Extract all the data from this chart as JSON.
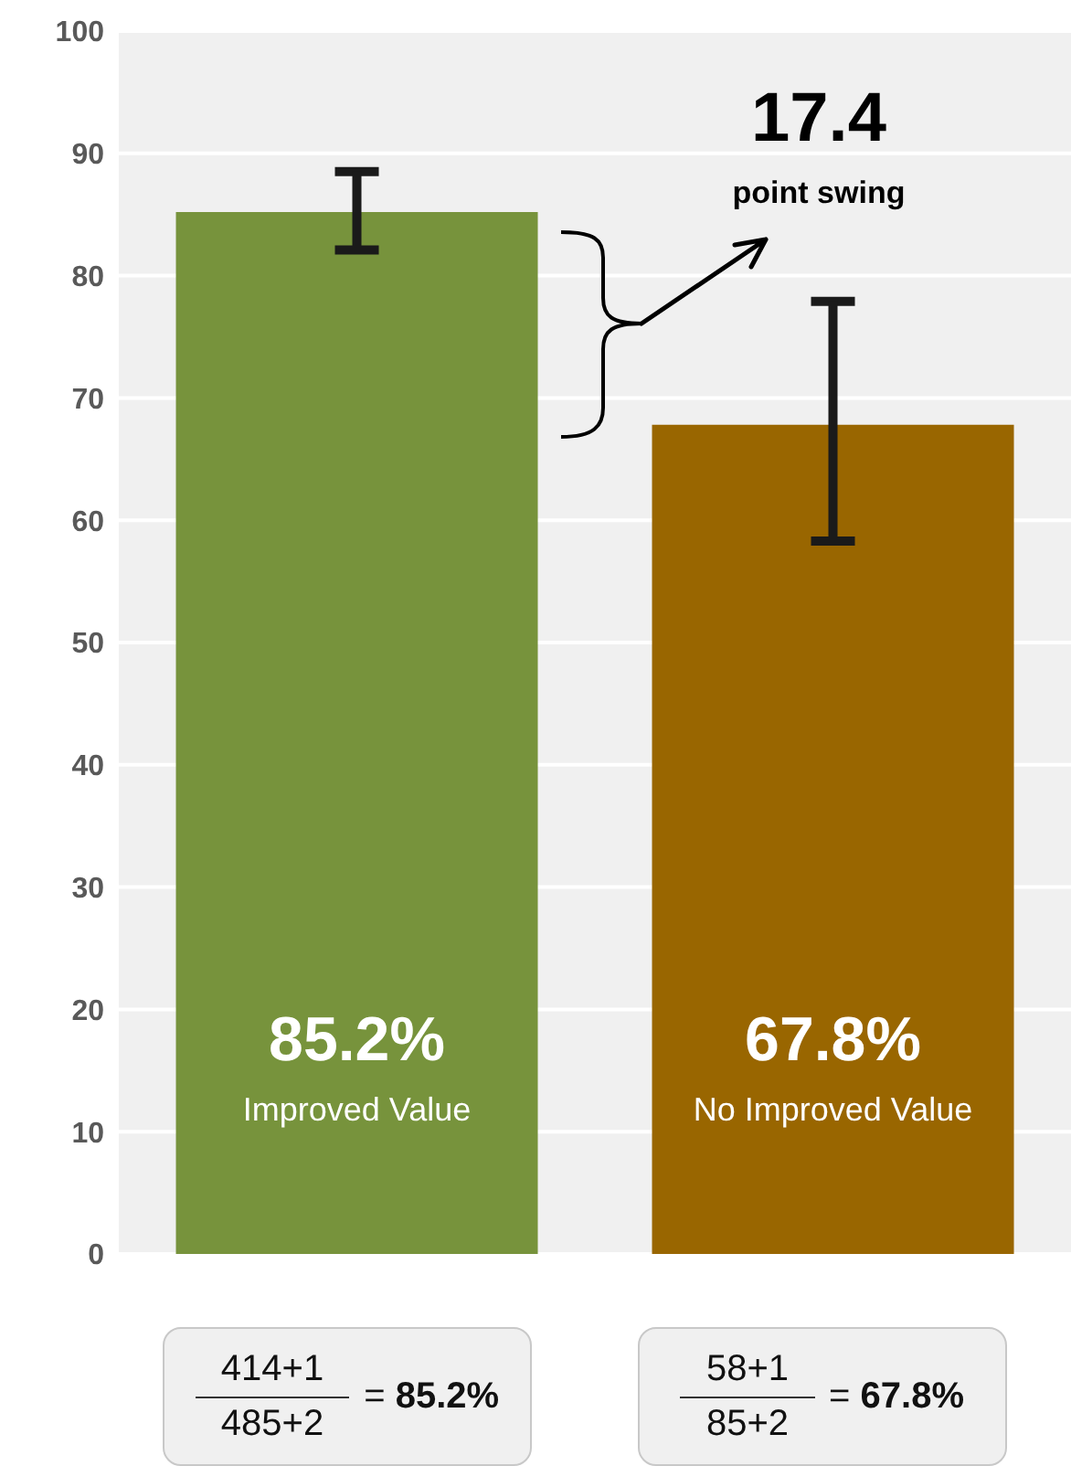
{
  "chart_data": {
    "type": "bar",
    "categories": [
      "Improved Value",
      "No Improved Value"
    ],
    "values": [
      85.2,
      67.8
    ],
    "colors": [
      "#77933c",
      "#996600"
    ],
    "errors": [
      [
        82.1,
        88.5
      ],
      [
        58.3,
        77.9
      ]
    ],
    "value_labels": [
      "85.2%",
      "67.8%"
    ],
    "ylim": [
      0,
      100
    ],
    "yticks": [
      0,
      10,
      20,
      30,
      40,
      50,
      60,
      70,
      80,
      90,
      100
    ],
    "grid": "y",
    "annotations": [
      "17.4",
      "point swing",
      "414+1",
      "485+2",
      "= 85.2%",
      "58+1",
      "85+2",
      "= 67.8%"
    ]
  }
}
